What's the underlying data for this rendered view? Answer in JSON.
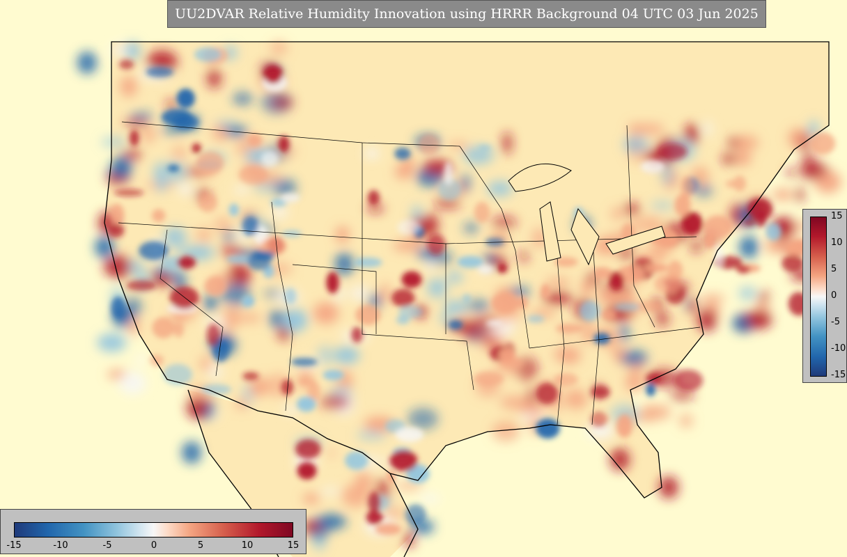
{
  "title": "UU2DVAR Relative Humidity Innovation using HRRR Background 04 UTC 03 Jun 2025",
  "colorbar_right": {
    "ticks": [
      "15",
      "10",
      "5",
      "0",
      "-5",
      "-10",
      "-15"
    ]
  },
  "colorbar_bottom": {
    "ticks": [
      "-15",
      "-10",
      "-5",
      "0",
      "5",
      "10",
      "15"
    ]
  },
  "colors": {
    "background": "#fffbd0",
    "strong_positive": "#b2182b",
    "weak_positive": "#f4a582",
    "neutral": "#f7f7f7",
    "weak_negative": "#92c5de",
    "strong_negative": "#2166ac"
  }
}
